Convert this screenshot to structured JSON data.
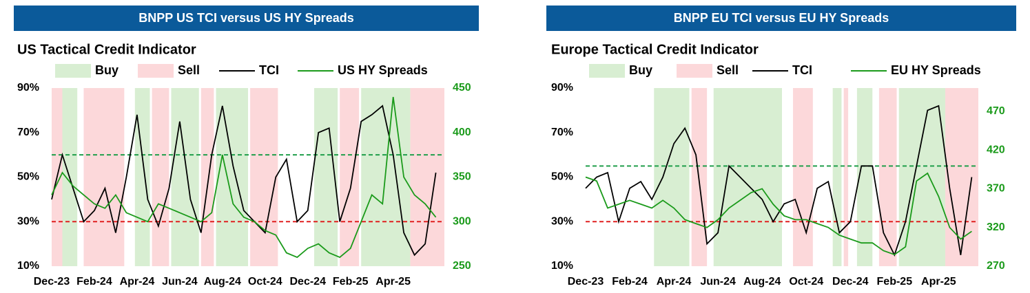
{
  "chart_data": [
    {
      "type": "line",
      "header": "BNPP US TCI versus US HY Spreads",
      "title": "US Tactical Credit Indicator",
      "x": [
        0,
        0.5,
        1,
        1.5,
        2,
        2.5,
        3,
        3.5,
        4,
        4.5,
        5,
        5.5,
        6,
        6.5,
        7,
        7.5,
        8,
        8.5,
        9,
        9.5,
        10,
        10.5,
        11,
        11.5,
        12,
        12.5,
        13,
        13.5,
        14,
        14.5,
        15,
        15.5,
        16,
        16.5,
        17,
        17.5,
        18
      ],
      "xlim": [
        0,
        18.4
      ],
      "xticks": [
        {
          "value": 0,
          "label": "Dec-23"
        },
        {
          "value": 2,
          "label": "Feb-24"
        },
        {
          "value": 4,
          "label": "Apr-24"
        },
        {
          "value": 6,
          "label": "Jun-24"
        },
        {
          "value": 8,
          "label": "Aug-24"
        },
        {
          "value": 10,
          "label": "Oct-24"
        },
        {
          "value": 12,
          "label": "Dec-24"
        },
        {
          "value": 14,
          "label": "Feb-25"
        },
        {
          "value": 16,
          "label": "Apr-25"
        }
      ],
      "ylim": [
        10,
        90
      ],
      "yticks": [
        {
          "value": 10,
          "label": "10%"
        },
        {
          "value": 30,
          "label": "30%"
        },
        {
          "value": 50,
          "label": "50%"
        },
        {
          "value": 70,
          "label": "70%"
        },
        {
          "value": 90,
          "label": "90%"
        }
      ],
      "y2lim": [
        250,
        450
      ],
      "y2ticks": [
        250,
        300,
        350,
        400,
        450
      ],
      "buy": {
        "name": "Buy",
        "color": "#d8eed2",
        "periods": [
          [
            0.5,
            1.2
          ],
          [
            3.9,
            4.6
          ],
          [
            5.6,
            6.9
          ],
          [
            7.7,
            9.2
          ],
          [
            12.3,
            13.4
          ],
          [
            14.5,
            16.8
          ]
        ]
      },
      "sell": {
        "name": "Sell",
        "color": "#fcd8da",
        "periods": [
          [
            0,
            0.5
          ],
          [
            1.5,
            3.4
          ],
          [
            4.7,
            5.5
          ],
          [
            7.0,
            7.6
          ],
          [
            9.3,
            10.6
          ],
          [
            13.5,
            14.4
          ],
          [
            16.8,
            18.4
          ]
        ]
      },
      "thresholds": [
        {
          "value": 60,
          "color": "#1f9e4a"
        },
        {
          "value": 30,
          "color": "#e02020"
        }
      ],
      "series": [
        {
          "name": "TCI",
          "color": "#000000",
          "values": [
            40,
            60,
            45,
            30,
            35,
            45,
            25,
            50,
            78,
            40,
            28,
            45,
            75,
            40,
            25,
            60,
            82,
            55,
            35,
            30,
            25,
            50,
            58,
            30,
            35,
            70,
            72,
            30,
            45,
            75,
            78,
            82,
            60,
            25,
            15,
            20,
            52
          ]
        },
        {
          "name": "US HY Spreads",
          "color": "#1a9a1a",
          "axis": "y2",
          "values": [
            330,
            355,
            340,
            330,
            320,
            315,
            330,
            310,
            305,
            300,
            320,
            315,
            310,
            305,
            300,
            310,
            375,
            320,
            305,
            300,
            290,
            285,
            265,
            260,
            270,
            275,
            265,
            260,
            270,
            300,
            330,
            320,
            440,
            350,
            330,
            320,
            305
          ]
        }
      ]
    },
    {
      "type": "line",
      "header": "BNPP EU TCI versus EU HY Spreads",
      "title": "Europe Tactical Credit Indicator",
      "x": [
        0,
        0.5,
        1,
        1.5,
        2,
        2.5,
        3,
        3.5,
        4,
        4.5,
        5,
        5.5,
        6,
        6.5,
        7,
        7.5,
        8,
        8.5,
        9,
        9.5,
        10,
        10.5,
        11,
        11.5,
        12,
        12.5,
        13,
        13.5,
        14,
        14.5,
        15,
        15.5,
        16,
        16.5,
        17,
        17.5
      ],
      "xlim": [
        0,
        17.8
      ],
      "xticks": [
        {
          "value": 0,
          "label": "Dec-23"
        },
        {
          "value": 2,
          "label": "Feb-24"
        },
        {
          "value": 4,
          "label": "Apr-24"
        },
        {
          "value": 6,
          "label": "Jun-24"
        },
        {
          "value": 8,
          "label": "Aug-24"
        },
        {
          "value": 10,
          "label": "Oct-24"
        },
        {
          "value": 12,
          "label": "Dec-24"
        },
        {
          "value": 14,
          "label": "Feb-25"
        },
        {
          "value": 16,
          "label": "Apr-25"
        }
      ],
      "ylim": [
        10,
        90
      ],
      "yticks": [
        {
          "value": 10,
          "label": "10%"
        },
        {
          "value": 30,
          "label": "30%"
        },
        {
          "value": 50,
          "label": "50%"
        },
        {
          "value": 70,
          "label": "70%"
        },
        {
          "value": 90,
          "label": "90%"
        }
      ],
      "y2lim": [
        270,
        500
      ],
      "y2ticks": [
        270,
        320,
        370,
        420,
        470
      ],
      "buy": {
        "name": "Buy",
        "color": "#d8eed2",
        "periods": [
          [
            3.1,
            4.7
          ],
          [
            5.8,
            8.9
          ],
          [
            11.2,
            11.6
          ],
          [
            12.3,
            13.0
          ],
          [
            14.2,
            16.3
          ]
        ]
      },
      "sell": {
        "name": "Sell",
        "color": "#fcd8da",
        "periods": [
          [
            4.8,
            5.5
          ],
          [
            9.4,
            10.3
          ],
          [
            11.7,
            11.9
          ],
          [
            13.3,
            14.1
          ],
          [
            16.3,
            17.8
          ]
        ]
      },
      "thresholds": [
        {
          "value": 55,
          "color": "#1f9e4a"
        },
        {
          "value": 30,
          "color": "#e02020"
        }
      ],
      "series": [
        {
          "name": "TCI",
          "color": "#000000",
          "values": [
            45,
            50,
            52,
            30,
            45,
            48,
            40,
            50,
            65,
            72,
            60,
            20,
            25,
            55,
            50,
            45,
            40,
            30,
            38,
            40,
            25,
            45,
            48,
            25,
            30,
            55,
            55,
            25,
            15,
            30,
            55,
            80,
            82,
            45,
            15,
            50
          ]
        },
        {
          "name": "EU HY Spreads",
          "color": "#1a9a1a",
          "axis": "y2",
          "values": [
            385,
            380,
            345,
            350,
            355,
            350,
            345,
            355,
            345,
            330,
            325,
            320,
            330,
            345,
            355,
            365,
            370,
            350,
            335,
            330,
            330,
            325,
            320,
            310,
            305,
            300,
            300,
            290,
            285,
            295,
            380,
            390,
            360,
            320,
            305,
            315
          ]
        }
      ]
    }
  ]
}
